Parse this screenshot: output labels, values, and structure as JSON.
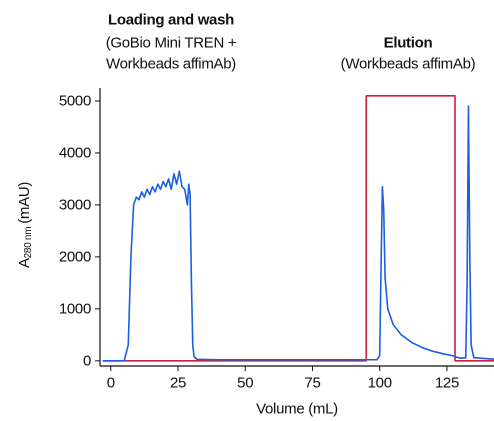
{
  "chart_data": {
    "type": "line",
    "annotations": [
      {
        "lines": [
          "Loading and wash",
          "(GoBio Mini TREN +",
          "Workbeads affimAb)"
        ]
      },
      {
        "lines": [
          "Elution",
          "(Workbeads affimAb)"
        ]
      }
    ],
    "x_label": "Volume (mL)",
    "y_label": {
      "main": "A",
      "subscript": "280 nm",
      "unit": "(mAU)"
    },
    "xlim": [
      -4,
      142.5
    ],
    "ylim": [
      -100,
      5250
    ],
    "xticks": [
      0,
      25,
      50,
      75,
      100,
      125
    ],
    "yticks": [
      0,
      1000,
      2000,
      3000,
      4000,
      5000
    ],
    "grid": false,
    "series": [
      {
        "color": "#1a5fe0",
        "x": [
          -3,
          5,
          6.5,
          7.5,
          8.5,
          9.5,
          10.5,
          11.5,
          12.5,
          13.5,
          14.5,
          15.5,
          16.5,
          17.5,
          18.5,
          19.5,
          20.5,
          21.5,
          22.5,
          23.5,
          24.5,
          25.5,
          26.5,
          27.5,
          28.5,
          29,
          29.5,
          30,
          30.5,
          31,
          32,
          40,
          60,
          80,
          95,
          99,
          100,
          100.5,
          101,
          101.5,
          102,
          103,
          105,
          108,
          112,
          116,
          120,
          124,
          127,
          128,
          130,
          132,
          132.5,
          133,
          133.5,
          134,
          135,
          143
        ],
        "values": [
          0,
          0,
          300,
          2000,
          3000,
          3150,
          3100,
          3250,
          3150,
          3300,
          3200,
          3350,
          3250,
          3400,
          3300,
          3450,
          3350,
          3500,
          3300,
          3600,
          3400,
          3650,
          3350,
          3300,
          3000,
          3400,
          3200,
          1500,
          300,
          80,
          30,
          20,
          20,
          20,
          20,
          20,
          100,
          1800,
          3350,
          2900,
          1600,
          1000,
          700,
          500,
          350,
          250,
          180,
          130,
          100,
          80,
          50,
          60,
          1500,
          4900,
          2000,
          300,
          60,
          30
        ]
      },
      {
        "color": "#c8203a",
        "x": [
          -3,
          95,
          95,
          128,
          128,
          143
        ],
        "values": [
          0,
          0,
          5100,
          5100,
          0,
          0
        ]
      }
    ]
  }
}
